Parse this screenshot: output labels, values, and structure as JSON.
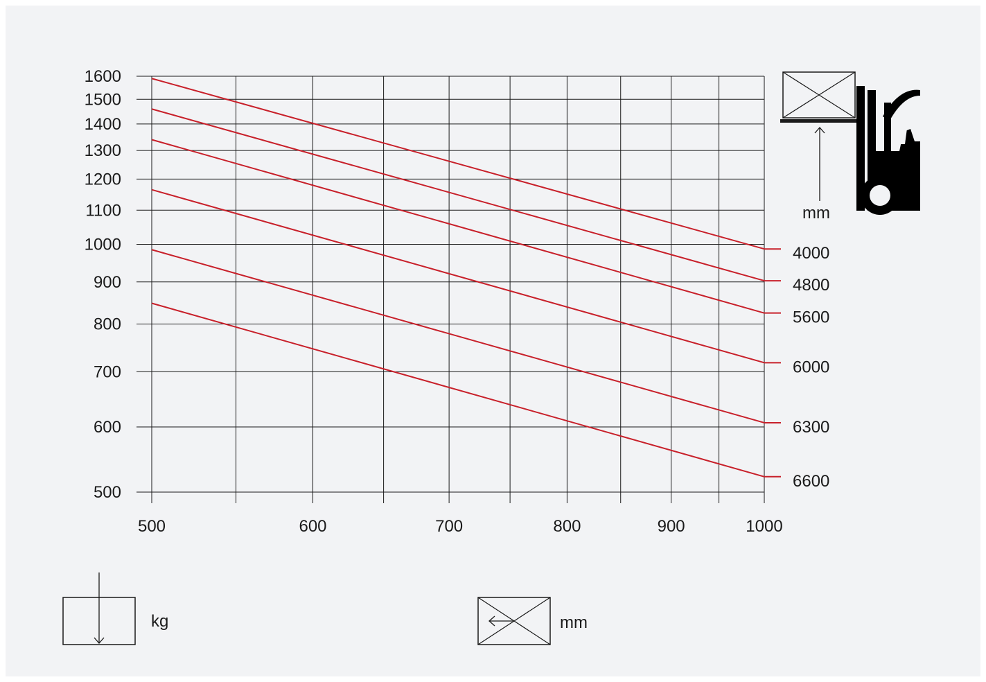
{
  "chart_data": {
    "type": "line",
    "x_scale": "log",
    "y_scale": "log",
    "xlim": [
      500,
      1000
    ],
    "ylim": [
      500,
      1600
    ],
    "x_ticks": [
      500,
      600,
      700,
      800,
      900,
      1000
    ],
    "x_grid": [
      500,
      550,
      600,
      650,
      700,
      750,
      800,
      850,
      900,
      950,
      1000
    ],
    "y_ticks": [
      500,
      600,
      700,
      800,
      900,
      1000,
      1100,
      1200,
      1300,
      1400,
      1500,
      1600
    ],
    "grid": true,
    "series": [
      {
        "name": "4000",
        "x": [
          500,
          1000
        ],
        "y": [
          1590,
          987
        ]
      },
      {
        "name": "4800",
        "x": [
          500,
          1000
        ],
        "y": [
          1460,
          903
        ]
      },
      {
        "name": "5600",
        "x": [
          500,
          1000
        ],
        "y": [
          1340,
          825
        ]
      },
      {
        "name": "6000",
        "x": [
          500,
          1000
        ],
        "y": [
          1165,
          718
        ]
      },
      {
        "name": "6300",
        "x": [
          500,
          1000
        ],
        "y": [
          985,
          607
        ]
      },
      {
        "name": "6600",
        "x": [
          500,
          1000
        ],
        "y": [
          848,
          522
        ]
      }
    ],
    "line_color": "#c8202a",
    "series_label_unit": "mm",
    "y_unit": "kg",
    "x_unit": "mm"
  }
}
